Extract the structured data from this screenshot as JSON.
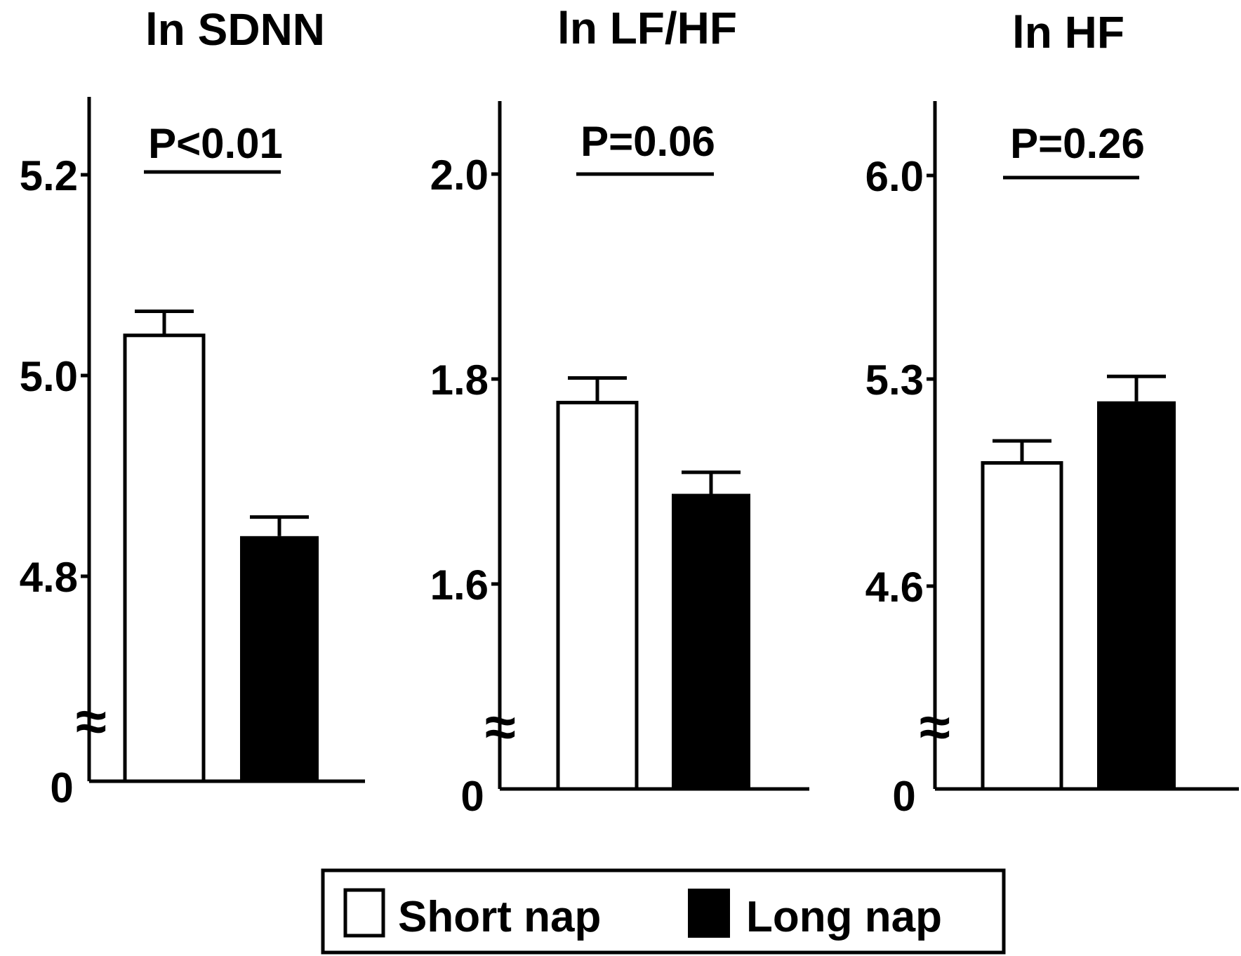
{
  "chart_data": [
    {
      "type": "bar",
      "title": "ln SDNN",
      "categories": [
        "Short nap",
        "Long nap"
      ],
      "values": [
        5.04,
        4.84
      ],
      "errors": [
        0.024,
        0.019
      ],
      "y_ticks": [
        4.8,
        5.0,
        5.2
      ],
      "y_tick_labels": [
        "4.8",
        "5.0",
        "5.2"
      ],
      "y_break_label": "0",
      "y_break_symbol": "≈",
      "annotation": "P<0.01",
      "ylim": [
        4.6,
        5.27
      ]
    },
    {
      "type": "bar",
      "title": "ln LF/HF",
      "categories": [
        "Short nap",
        "Long nap"
      ],
      "values": [
        1.777,
        1.688
      ],
      "errors": [
        0.024,
        0.021
      ],
      "y_ticks": [
        1.6,
        1.8,
        2.0
      ],
      "y_tick_labels": [
        "1.6",
        "1.8",
        "2.0"
      ],
      "y_break_label": "0",
      "y_break_symbol": "≈",
      "annotation": "P=0.06",
      "ylim": [
        1.4,
        2.07
      ]
    },
    {
      "type": "bar",
      "title": "ln HF",
      "categories": [
        "Short nap",
        "Long nap"
      ],
      "values": [
        5.02,
        5.23
      ],
      "errors": [
        0.075,
        0.085
      ],
      "y_ticks": [
        4.6,
        5.3,
        6.0
      ],
      "y_tick_labels": [
        "4.6",
        "5.3",
        "6.0"
      ],
      "y_break_label": "0",
      "y_break_symbol": "≈",
      "annotation": "P=0.26",
      "ylim": [
        3.9,
        6.25
      ]
    }
  ],
  "legend": {
    "position": "bottom-center",
    "items": [
      {
        "label": "Short nap",
        "fill": "#ffffff"
      },
      {
        "label": "Long nap",
        "fill": "#000000"
      }
    ]
  },
  "colors": {
    "short": "#ffffff",
    "long": "#000000",
    "stroke": "#000000"
  }
}
